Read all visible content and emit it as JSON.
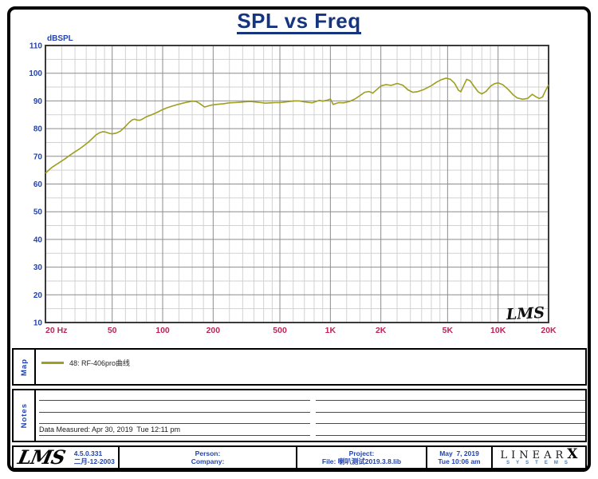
{
  "page": {
    "title": "SPL vs Freq"
  },
  "colors": {
    "accent_blue": "#2343ae",
    "title_blue": "#16357f",
    "axis_x_crimson": "#c02358",
    "curve_olive": "#9e9e20"
  },
  "chart_data": {
    "type": "line",
    "title": "SPL vs Freq",
    "xlabel": "Hz",
    "ylabel": "dBSPL",
    "x_scale": "log",
    "xlim": [
      20,
      20000
    ],
    "ylim": [
      10,
      110
    ],
    "y_major_step": 10,
    "y_minor_step": 5,
    "grid": "on",
    "watermark": "LMS",
    "x_ticks": [
      {
        "f": 20,
        "label": "20 Hz"
      },
      {
        "f": 50,
        "label": "50"
      },
      {
        "f": 100,
        "label": "100"
      },
      {
        "f": 200,
        "label": "200"
      },
      {
        "f": 500,
        "label": "500"
      },
      {
        "f": 1000,
        "label": "1K"
      },
      {
        "f": 2000,
        "label": "2K"
      },
      {
        "f": 5000,
        "label": "5K"
      },
      {
        "f": 10000,
        "label": "10K"
      },
      {
        "f": 20000,
        "label": "20K"
      }
    ],
    "x_grid": {
      "decades": [
        10,
        100,
        1000,
        10000
      ],
      "minor_multiples": [
        1,
        1.25,
        1.5,
        1.75,
        2,
        2.5,
        3,
        3.5,
        4,
        4.5,
        5,
        6,
        7,
        8,
        9
      ],
      "major": [
        20,
        50,
        100,
        200,
        500,
        1000,
        2000,
        5000,
        10000,
        20000
      ]
    },
    "series": [
      {
        "name": "48: RF-406pro曲线",
        "color": "#9e9e20",
        "points": [
          [
            20,
            63.9
          ],
          [
            21,
            65.1
          ],
          [
            22,
            66.1
          ],
          [
            23,
            66.9
          ],
          [
            24,
            67.6
          ],
          [
            25,
            68.3
          ],
          [
            26,
            69.0
          ],
          [
            28,
            70.4
          ],
          [
            30,
            71.6
          ],
          [
            32,
            72.7
          ],
          [
            34,
            73.9
          ],
          [
            36,
            75.1
          ],
          [
            38,
            76.4
          ],
          [
            40,
            77.7
          ],
          [
            42,
            78.5
          ],
          [
            44,
            78.9
          ],
          [
            46,
            78.7
          ],
          [
            48,
            78.3
          ],
          [
            50,
            78.1
          ],
          [
            53,
            78.4
          ],
          [
            56,
            79.1
          ],
          [
            60,
            80.8
          ],
          [
            63,
            82.2
          ],
          [
            66,
            83.2
          ],
          [
            68,
            83.4
          ],
          [
            70,
            83.1
          ],
          [
            73,
            83.0
          ],
          [
            76,
            83.5
          ],
          [
            80,
            84.3
          ],
          [
            85,
            84.9
          ],
          [
            90,
            85.5
          ],
          [
            95,
            86.2
          ],
          [
            100,
            86.9
          ],
          [
            107,
            87.6
          ],
          [
            115,
            88.2
          ],
          [
            123,
            88.7
          ],
          [
            132,
            89.2
          ],
          [
            141,
            89.6
          ],
          [
            150,
            89.9
          ],
          [
            158,
            89.8
          ],
          [
            165,
            89.2
          ],
          [
            172,
            88.4
          ],
          [
            178,
            87.8
          ],
          [
            185,
            88.1
          ],
          [
            192,
            88.4
          ],
          [
            200,
            88.6
          ],
          [
            215,
            88.8
          ],
          [
            230,
            89.0
          ],
          [
            250,
            89.3
          ],
          [
            270,
            89.4
          ],
          [
            290,
            89.5
          ],
          [
            310,
            89.7
          ],
          [
            335,
            89.8
          ],
          [
            360,
            89.6
          ],
          [
            385,
            89.4
          ],
          [
            410,
            89.2
          ],
          [
            440,
            89.3
          ],
          [
            470,
            89.4
          ],
          [
            500,
            89.4
          ],
          [
            535,
            89.6
          ],
          [
            570,
            89.8
          ],
          [
            610,
            90.0
          ],
          [
            650,
            90.0
          ],
          [
            690,
            89.7
          ],
          [
            730,
            89.5
          ],
          [
            780,
            89.3
          ],
          [
            820,
            89.8
          ],
          [
            860,
            90.2
          ],
          [
            900,
            89.9
          ],
          [
            950,
            90.2
          ],
          [
            1000,
            90.7
          ],
          [
            1040,
            88.7
          ],
          [
            1080,
            89.1
          ],
          [
            1130,
            89.4
          ],
          [
            1200,
            89.3
          ],
          [
            1300,
            89.8
          ],
          [
            1400,
            90.7
          ],
          [
            1500,
            91.9
          ],
          [
            1600,
            93.1
          ],
          [
            1700,
            93.4
          ],
          [
            1790,
            92.8
          ],
          [
            1900,
            94.2
          ],
          [
            2000,
            95.4
          ],
          [
            2150,
            95.9
          ],
          [
            2300,
            95.6
          ],
          [
            2500,
            96.3
          ],
          [
            2700,
            95.7
          ],
          [
            2900,
            94.0
          ],
          [
            3100,
            93.1
          ],
          [
            3300,
            93.3
          ],
          [
            3600,
            94.1
          ],
          [
            4000,
            95.5
          ],
          [
            4300,
            96.8
          ],
          [
            4600,
            97.7
          ],
          [
            4900,
            98.2
          ],
          [
            5200,
            97.8
          ],
          [
            5500,
            96.4
          ],
          [
            5800,
            93.9
          ],
          [
            6000,
            93.3
          ],
          [
            6200,
            95.2
          ],
          [
            6500,
            97.8
          ],
          [
            6800,
            97.3
          ],
          [
            7200,
            95.2
          ],
          [
            7600,
            93.3
          ],
          [
            8000,
            92.5
          ],
          [
            8500,
            93.5
          ],
          [
            9000,
            95.3
          ],
          [
            9500,
            96.2
          ],
          [
            10000,
            96.5
          ],
          [
            10700,
            95.8
          ],
          [
            11500,
            94.1
          ],
          [
            12300,
            92.2
          ],
          [
            13000,
            91.1
          ],
          [
            14000,
            90.6
          ],
          [
            15000,
            90.9
          ],
          [
            16000,
            92.4
          ],
          [
            16800,
            91.5
          ],
          [
            17600,
            90.9
          ],
          [
            18400,
            91.4
          ],
          [
            19200,
            93.8
          ],
          [
            20000,
            95.8
          ]
        ]
      }
    ]
  },
  "map_panel": {
    "label": "Map",
    "legend": [
      {
        "name": "48: RF-406pro曲线",
        "color": "#9e9e20"
      }
    ]
  },
  "notes_panel": {
    "label": "Notes",
    "data_measured": "Data Measured: Apr 30, 2019  Tue 12:11 pm"
  },
  "footer": {
    "logo": "LMS",
    "version": "4.5.0.331",
    "date_cn": "二月-12-2003",
    "person_label": "Person:",
    "company_label": "Company:",
    "project_label": "Project:",
    "file_label": "File: 喇叭测试2019.3.8.lib",
    "date": "May  7, 2019",
    "time": "Tue 10:06 am",
    "brand": {
      "linear": "LINEAR",
      "x": "X",
      "systems": "SYSTEMS"
    }
  }
}
